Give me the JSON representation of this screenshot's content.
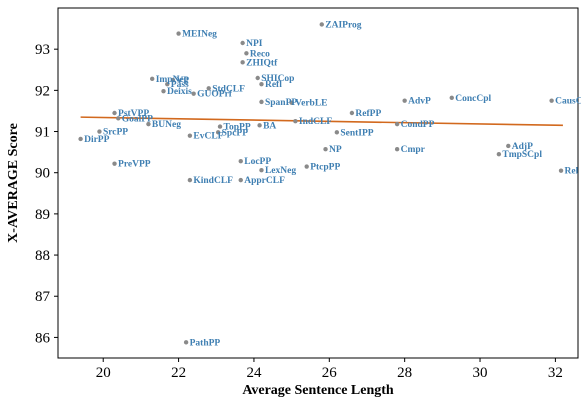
{
  "chart_data": {
    "type": "scatter",
    "xlabel": "Average Sentence Length",
    "ylabel": "X-AVERAGE Score",
    "xlim": [
      18.8,
      32.6
    ],
    "ylim": [
      85.5,
      94.0
    ],
    "xticks": [
      20,
      22,
      24,
      26,
      28,
      30,
      32
    ],
    "yticks": [
      86,
      87,
      88,
      89,
      90,
      91,
      92,
      93
    ],
    "grid": false,
    "point_color": "#8a8a8a",
    "label_color": "#3f7fb2",
    "trend_color": "#d2691e",
    "trendline": {
      "x": [
        19.4,
        32.2
      ],
      "y": [
        91.35,
        91.15
      ]
    },
    "points": [
      {
        "label": "MEINeg",
        "x": 22.0,
        "y": 93.38
      },
      {
        "label": "ZAIProg",
        "x": 25.8,
        "y": 93.6
      },
      {
        "label": "NPI",
        "x": 23.7,
        "y": 93.15
      },
      {
        "label": "Reco",
        "x": 23.8,
        "y": 92.9
      },
      {
        "label": "ZHIQtf",
        "x": 23.7,
        "y": 92.68
      },
      {
        "label": "ImpNeg",
        "x": 21.3,
        "y": 92.28
      },
      {
        "label": "VP",
        "x": 21.85,
        "y": 92.25
      },
      {
        "label": "Pass",
        "x": 21.7,
        "y": 92.15
      },
      {
        "label": "StdCLF",
        "x": 22.8,
        "y": 92.05
      },
      {
        "label": "SHICop",
        "x": 24.1,
        "y": 92.3
      },
      {
        "label": "Refl",
        "x": 24.2,
        "y": 92.15
      },
      {
        "label": "Deixis",
        "x": 21.6,
        "y": 91.98
      },
      {
        "label": "GUOPrf",
        "x": 22.4,
        "y": 91.92
      },
      {
        "label": "SpanPP",
        "x": 24.2,
        "y": 91.72
      },
      {
        "label": "VerbLE",
        "x": 25.0,
        "y": 91.7
      },
      {
        "label": "AdvP",
        "x": 28.0,
        "y": 91.75
      },
      {
        "label": "ConcCpl",
        "x": 29.25,
        "y": 91.82
      },
      {
        "label": "CausCpl",
        "x": 31.9,
        "y": 91.75
      },
      {
        "label": "PstVPP",
        "x": 20.3,
        "y": 91.45
      },
      {
        "label": "GoalPP",
        "x": 20.4,
        "y": 91.32
      },
      {
        "label": "RefPP",
        "x": 26.6,
        "y": 91.45
      },
      {
        "label": "BUNeg",
        "x": 21.2,
        "y": 91.18
      },
      {
        "label": "IndCLF",
        "x": 25.1,
        "y": 91.25
      },
      {
        "label": "CondPP",
        "x": 27.8,
        "y": 91.18
      },
      {
        "label": "SrcPP",
        "x": 19.9,
        "y": 91.0
      },
      {
        "label": "TopPP",
        "x": 23.1,
        "y": 91.12
      },
      {
        "label": "BA",
        "x": 24.15,
        "y": 91.15
      },
      {
        "label": "SentIPP",
        "x": 26.2,
        "y": 90.98
      },
      {
        "label": "DirPP",
        "x": 19.4,
        "y": 90.82
      },
      {
        "label": "SpcPP",
        "x": 23.05,
        "y": 90.98
      },
      {
        "label": "EvCLF",
        "x": 22.3,
        "y": 90.9
      },
      {
        "label": "NP",
        "x": 25.9,
        "y": 90.57
      },
      {
        "label": "Cmpr",
        "x": 27.8,
        "y": 90.57
      },
      {
        "label": "AdjP",
        "x": 30.75,
        "y": 90.65
      },
      {
        "label": "TmpSCpl",
        "x": 30.5,
        "y": 90.45
      },
      {
        "label": "PreVPP",
        "x": 20.3,
        "y": 90.22
      },
      {
        "label": "LocPP",
        "x": 23.65,
        "y": 90.28
      },
      {
        "label": "PtcpPP",
        "x": 25.4,
        "y": 90.15
      },
      {
        "label": "LexNeg",
        "x": 24.2,
        "y": 90.06
      },
      {
        "label": "Rel",
        "x": 32.15,
        "y": 90.05
      },
      {
        "label": "KindCLF",
        "x": 22.3,
        "y": 89.82
      },
      {
        "label": "ApprCLF",
        "x": 23.65,
        "y": 89.82
      },
      {
        "label": "PathPP",
        "x": 22.2,
        "y": 85.88
      }
    ]
  }
}
